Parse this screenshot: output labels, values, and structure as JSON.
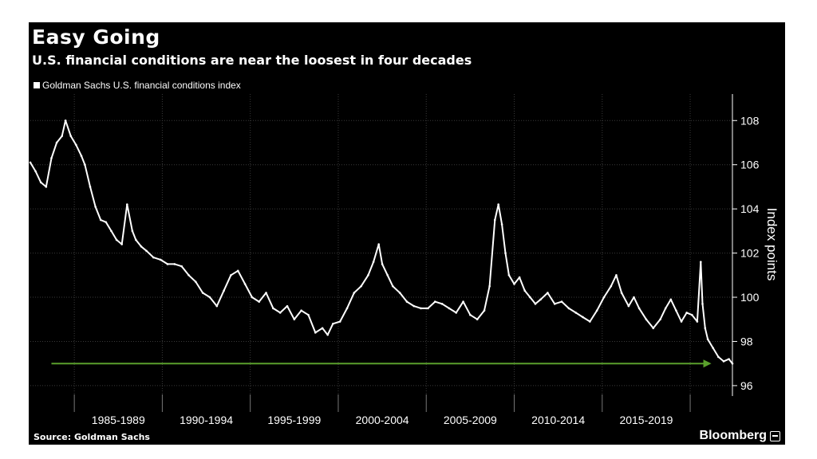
{
  "chart_data": {
    "type": "line",
    "title": "Easy Going",
    "subtitle": "U.S. financial conditions are near the loosest in four decades",
    "legend": [
      "Goldman Sachs U.S. financial conditions index"
    ],
    "ylabel": "Index points",
    "xlabel": "",
    "ylim": [
      95.6,
      109.2
    ],
    "yticks": [
      96,
      98,
      100,
      102,
      104,
      106,
      108
    ],
    "xlim": [
      1982.0,
      2021.9
    ],
    "x_category_labels": [
      "1985-1989",
      "1990-1994",
      "1995-1999",
      "2000-2004",
      "2005-2009",
      "2010-2014",
      "2015-2019"
    ],
    "x_gridlines": [
      1984.5,
      1989.5,
      1994.5,
      1999.5,
      2004.5,
      2009.5,
      2014.5,
      2019.5
    ],
    "grid": true,
    "series": [
      {
        "name": "Goldman Sachs U.S. financial conditions index",
        "x": [
          1982.0,
          1982.3,
          1982.6,
          1982.9,
          1983.2,
          1983.5,
          1983.8,
          1984.0,
          1984.3,
          1984.6,
          1984.9,
          1985.1,
          1985.4,
          1985.7,
          1986.0,
          1986.3,
          1986.6,
          1986.9,
          1987.2,
          1987.5,
          1987.8,
          1988.0,
          1988.3,
          1988.6,
          1989.0,
          1989.4,
          1989.8,
          1990.2,
          1990.6,
          1991.0,
          1991.4,
          1991.8,
          1992.2,
          1992.6,
          1993.0,
          1993.4,
          1993.8,
          1994.2,
          1994.6,
          1995.0,
          1995.4,
          1995.8,
          1996.2,
          1996.6,
          1997.0,
          1997.4,
          1997.8,
          1998.2,
          1998.6,
          1998.9,
          1999.2,
          1999.6,
          2000.0,
          2000.4,
          2000.8,
          2001.2,
          2001.5,
          2001.8,
          2002.0,
          2002.3,
          2002.6,
          2003.0,
          2003.4,
          2003.8,
          2004.2,
          2004.6,
          2005.0,
          2005.4,
          2005.8,
          2006.2,
          2006.6,
          2007.0,
          2007.4,
          2007.8,
          2008.1,
          2008.4,
          2008.6,
          2008.8,
          2009.0,
          2009.2,
          2009.5,
          2009.8,
          2010.1,
          2010.4,
          2010.7,
          2011.0,
          2011.4,
          2011.8,
          2012.2,
          2012.6,
          2013.0,
          2013.4,
          2013.8,
          2014.2,
          2014.6,
          2015.0,
          2015.3,
          2015.6,
          2016.0,
          2016.3,
          2016.6,
          2017.0,
          2017.4,
          2017.8,
          2018.1,
          2018.4,
          2018.7,
          2019.0,
          2019.3,
          2019.6,
          2019.9,
          2020.1,
          2020.2,
          2020.35,
          2020.5,
          2020.8,
          2021.1,
          2021.4,
          2021.7,
          2021.9
        ],
        "values": [
          106.1,
          105.7,
          105.2,
          105.0,
          106.3,
          107.0,
          107.3,
          108.0,
          107.3,
          106.9,
          106.4,
          106.0,
          105.0,
          104.1,
          103.5,
          103.4,
          103.0,
          102.6,
          102.4,
          104.2,
          103.0,
          102.6,
          102.3,
          102.1,
          101.8,
          101.7,
          101.5,
          101.5,
          101.4,
          101.0,
          100.7,
          100.2,
          100.0,
          99.6,
          100.3,
          101.0,
          101.2,
          100.6,
          100.0,
          99.8,
          100.2,
          99.5,
          99.3,
          99.6,
          99.0,
          99.4,
          99.2,
          98.4,
          98.6,
          98.3,
          98.8,
          98.9,
          99.5,
          100.2,
          100.5,
          101.0,
          101.6,
          102.4,
          101.5,
          101.0,
          100.5,
          100.2,
          99.8,
          99.6,
          99.5,
          99.5,
          99.8,
          99.7,
          99.5,
          99.3,
          99.8,
          99.2,
          99.0,
          99.4,
          100.5,
          103.5,
          104.2,
          103.3,
          102.0,
          101.0,
          100.6,
          100.9,
          100.3,
          100.0,
          99.7,
          99.9,
          100.2,
          99.7,
          99.8,
          99.5,
          99.3,
          99.1,
          98.9,
          99.4,
          100.0,
          100.5,
          101.0,
          100.2,
          99.6,
          100.0,
          99.5,
          99.0,
          98.6,
          99.0,
          99.5,
          99.9,
          99.4,
          98.9,
          99.3,
          99.2,
          98.9,
          101.6,
          99.7,
          98.6,
          98.1,
          97.7,
          97.3,
          97.1,
          97.2,
          97.0
        ]
      }
    ],
    "annotations": [
      {
        "type": "arrow",
        "color": "#5aa02c",
        "from_x": 1983.2,
        "to_x": 2020.7,
        "y": 97.0
      }
    ],
    "colors": {
      "background": "#000000",
      "line": "#ffffff",
      "grid": "#3a3a3a",
      "arrow": "#5aa02c"
    }
  },
  "footer": {
    "source": "Source: Goldman Sachs",
    "brand": "Bloomberg"
  }
}
